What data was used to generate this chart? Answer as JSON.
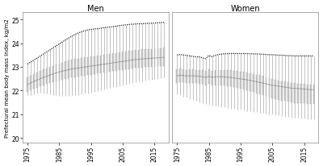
{
  "title_left": "Men",
  "title_right": "Women",
  "ylabel": "Prefectural mean body mass index, kg/m2",
  "ylim": [
    19.8,
    25.3
  ],
  "yticks": [
    20,
    21,
    22,
    23,
    24,
    25
  ],
  "years": [
    1975,
    1976,
    1977,
    1978,
    1979,
    1980,
    1981,
    1982,
    1983,
    1984,
    1985,
    1986,
    1987,
    1988,
    1989,
    1990,
    1991,
    1992,
    1993,
    1994,
    1995,
    1996,
    1997,
    1998,
    1999,
    2000,
    2001,
    2002,
    2003,
    2004,
    2005,
    2006,
    2007,
    2008,
    2009,
    2010,
    2011,
    2012,
    2013,
    2014,
    2015,
    2016,
    2017,
    2018
  ],
  "men_max": [
    23.12,
    23.2,
    23.28,
    23.37,
    23.45,
    23.54,
    23.62,
    23.71,
    23.8,
    23.88,
    23.97,
    24.05,
    24.14,
    24.22,
    24.3,
    24.37,
    24.43,
    24.48,
    24.52,
    24.56,
    24.58,
    24.6,
    24.61,
    24.63,
    24.65,
    24.67,
    24.68,
    24.7,
    24.72,
    24.74,
    24.76,
    24.77,
    24.79,
    24.8,
    24.81,
    24.82,
    24.82,
    24.83,
    24.84,
    24.84,
    24.85,
    24.86,
    24.87,
    24.88
  ],
  "men_q75": [
    22.55,
    22.62,
    22.69,
    22.76,
    22.82,
    22.88,
    22.94,
    22.99,
    23.04,
    23.09,
    23.14,
    23.18,
    23.22,
    23.26,
    23.29,
    23.32,
    23.35,
    23.37,
    23.39,
    23.41,
    23.43,
    23.45,
    23.47,
    23.49,
    23.51,
    23.53,
    23.55,
    23.57,
    23.59,
    23.61,
    23.63,
    23.65,
    23.67,
    23.69,
    23.71,
    23.72,
    23.73,
    23.74,
    23.75,
    23.76,
    23.77,
    23.78,
    23.79,
    23.8
  ],
  "men_median": [
    22.25,
    22.32,
    22.38,
    22.44,
    22.5,
    22.55,
    22.6,
    22.65,
    22.7,
    22.74,
    22.78,
    22.82,
    22.85,
    22.88,
    22.91,
    22.93,
    22.95,
    22.97,
    22.99,
    23.01,
    23.03,
    23.05,
    23.07,
    23.09,
    23.11,
    23.13,
    23.15,
    23.17,
    23.19,
    23.21,
    23.23,
    23.25,
    23.27,
    23.29,
    23.31,
    23.32,
    23.33,
    23.34,
    23.35,
    23.36,
    23.37,
    23.38,
    23.39,
    23.4
  ],
  "men_q25": [
    21.95,
    22.01,
    22.07,
    22.12,
    22.17,
    22.22,
    22.27,
    22.31,
    22.35,
    22.39,
    22.43,
    22.46,
    22.49,
    22.52,
    22.55,
    22.57,
    22.59,
    22.61,
    22.63,
    22.65,
    22.67,
    22.69,
    22.71,
    22.73,
    22.75,
    22.77,
    22.79,
    22.81,
    22.83,
    22.85,
    22.87,
    22.89,
    22.91,
    22.93,
    22.95,
    22.96,
    22.97,
    22.98,
    22.99,
    23.0,
    23.01,
    23.02,
    23.03,
    23.04
  ],
  "men_min": [
    21.8,
    21.82,
    21.85,
    21.88,
    21.9,
    21.88,
    21.86,
    21.84,
    21.82,
    21.8,
    21.78,
    21.77,
    21.77,
    21.78,
    21.79,
    21.8,
    21.82,
    21.84,
    21.87,
    21.89,
    21.92,
    21.95,
    21.98,
    22.01,
    22.04,
    22.07,
    22.1,
    22.13,
    22.16,
    22.19,
    22.22,
    22.25,
    22.28,
    22.31,
    22.34,
    22.37,
    22.39,
    22.42,
    22.44,
    22.46,
    22.48,
    22.5,
    22.52,
    22.54
  ],
  "women_max": [
    23.5,
    23.52,
    23.5,
    23.48,
    23.46,
    23.44,
    23.42,
    23.42,
    23.38,
    23.34,
    23.48,
    23.43,
    23.48,
    23.52,
    23.54,
    23.55,
    23.56,
    23.56,
    23.56,
    23.56,
    23.56,
    23.56,
    23.56,
    23.55,
    23.55,
    23.54,
    23.54,
    23.53,
    23.52,
    23.51,
    23.51,
    23.5,
    23.49,
    23.49,
    23.48,
    23.47,
    23.47,
    23.46,
    23.46,
    23.46,
    23.46,
    23.46,
    23.46,
    23.46
  ],
  "women_q75": [
    22.9,
    22.93,
    22.9,
    22.87,
    22.88,
    22.88,
    22.87,
    22.87,
    22.85,
    22.82,
    22.88,
    22.83,
    22.85,
    22.87,
    22.87,
    22.87,
    22.87,
    22.86,
    22.84,
    22.82,
    22.8,
    22.78,
    22.76,
    22.73,
    22.7,
    22.67,
    22.64,
    22.61,
    22.57,
    22.53,
    22.49,
    22.46,
    22.43,
    22.4,
    22.37,
    22.34,
    22.32,
    22.3,
    22.29,
    22.28,
    22.27,
    22.26,
    22.25,
    22.25
  ],
  "women_median": [
    22.62,
    22.65,
    22.63,
    22.61,
    22.62,
    22.62,
    22.61,
    22.6,
    22.58,
    22.55,
    22.6,
    22.56,
    22.57,
    22.58,
    22.58,
    22.57,
    22.56,
    22.55,
    22.53,
    22.51,
    22.49,
    22.47,
    22.45,
    22.42,
    22.4,
    22.37,
    22.34,
    22.31,
    22.28,
    22.25,
    22.22,
    22.2,
    22.18,
    22.16,
    22.14,
    22.12,
    22.1,
    22.09,
    22.08,
    22.07,
    22.06,
    22.05,
    22.04,
    22.03
  ],
  "women_q25": [
    22.33,
    22.36,
    22.34,
    22.32,
    22.32,
    22.31,
    22.3,
    22.29,
    22.27,
    22.23,
    22.27,
    22.23,
    22.23,
    22.23,
    22.22,
    22.21,
    22.19,
    22.17,
    22.14,
    22.11,
    22.08,
    22.05,
    22.01,
    21.97,
    21.93,
    21.89,
    21.85,
    21.81,
    21.77,
    21.72,
    21.68,
    21.64,
    21.61,
    21.58,
    21.55,
    21.52,
    21.5,
    21.48,
    21.47,
    21.46,
    21.45,
    21.44,
    21.43,
    21.43
  ],
  "women_min": [
    21.85,
    21.8,
    21.75,
    21.7,
    21.65,
    21.6,
    21.55,
    21.5,
    21.45,
    21.42,
    21.4,
    21.37,
    21.35,
    21.33,
    21.3,
    21.28,
    21.26,
    21.24,
    21.22,
    21.2,
    21.18,
    21.16,
    21.14,
    21.12,
    21.1,
    21.08,
    21.06,
    21.04,
    21.02,
    21.0,
    20.98,
    20.96,
    20.94,
    20.92,
    20.9,
    20.88,
    20.86,
    20.85,
    20.84,
    20.82,
    20.81,
    20.8,
    20.79,
    20.78
  ],
  "box_color": "#c8c8c8",
  "whisker_color": "#aaaaaa",
  "median_dot_color": "#666666",
  "max_dot_color": "#222222",
  "background_color": "#ffffff"
}
